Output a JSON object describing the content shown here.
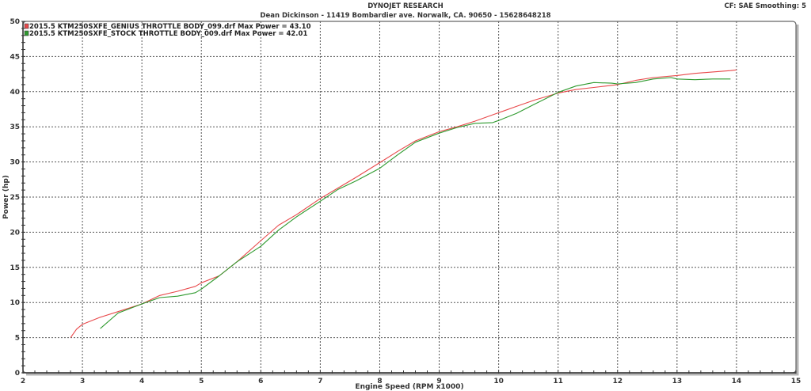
{
  "header": {
    "title": "DYNOJET RESEARCH",
    "subtitle": "Dean Dickinson - 11419 Bombardier ave. Norwalk, CA. 90650 - 15628648218",
    "settings": "CF: SAE  Smoothing: 5"
  },
  "colors": {
    "genius": "#e8484a",
    "stock": "#2e9a2e",
    "grid": "#555555",
    "frame": "#666666",
    "frame_shadow": "#b5b5b5"
  },
  "chart_data": {
    "type": "line",
    "title": "DYNOJET RESEARCH",
    "subtitle": "Dean Dickinson - 11419 Bombardier ave. Norwalk, CA. 90650 - 15628648218",
    "xlabel": "Engine Speed (RPM x1000)",
    "ylabel": "Power (hp)",
    "xlim": [
      2,
      15
    ],
    "ylim": [
      0,
      50
    ],
    "xticks": [
      2,
      3,
      4,
      5,
      6,
      7,
      8,
      9,
      10,
      11,
      12,
      13,
      14,
      15
    ],
    "yticks": [
      0,
      5,
      10,
      15,
      20,
      25,
      30,
      35,
      40,
      45,
      50
    ],
    "grid": true,
    "legend_position": "top-left-inside",
    "series": [
      {
        "name": "2015.5 KTM250SXFE_GENIUS THROTTLE BODY_099.drf Max Power = 43.10",
        "color": "#e8484a",
        "max_power": 43.1,
        "x": [
          2.8,
          2.9,
          3.0,
          3.3,
          3.6,
          4.0,
          4.3,
          4.6,
          4.9,
          5.0,
          5.3,
          5.6,
          6.0,
          6.3,
          6.6,
          7.0,
          7.3,
          7.6,
          8.0,
          8.3,
          8.6,
          9.0,
          9.3,
          9.6,
          10.0,
          10.3,
          10.6,
          11.0,
          11.3,
          11.6,
          12.0,
          12.3,
          12.6,
          13.0,
          13.3,
          13.6,
          13.9,
          14.0
        ],
        "y": [
          5.0,
          6.2,
          6.9,
          7.9,
          8.7,
          9.8,
          11.0,
          11.6,
          12.3,
          12.8,
          13.8,
          15.8,
          18.8,
          21.0,
          22.5,
          24.8,
          26.3,
          27.8,
          29.9,
          31.5,
          33.0,
          34.3,
          35.0,
          35.8,
          37.0,
          37.9,
          38.8,
          39.8,
          40.3,
          40.6,
          41.0,
          41.6,
          42.0,
          42.3,
          42.6,
          42.8,
          43.0,
          43.1
        ]
      },
      {
        "name": "2015.5 KTM250SXFE_STOCK THROTTLE BODY_009.drf Max Power = 42.01",
        "color": "#2e9a2e",
        "max_power": 42.01,
        "x": [
          3.3,
          3.6,
          4.0,
          4.3,
          4.6,
          4.9,
          5.0,
          5.3,
          5.6,
          6.0,
          6.3,
          6.6,
          7.0,
          7.3,
          7.6,
          8.0,
          8.3,
          8.6,
          9.0,
          9.3,
          9.6,
          9.9,
          10.0,
          10.3,
          10.6,
          11.0,
          11.3,
          11.6,
          11.9,
          12.0,
          12.3,
          12.6,
          12.9,
          13.0,
          13.3,
          13.6,
          13.9
        ],
        "y": [
          6.3,
          8.5,
          9.8,
          10.7,
          10.9,
          11.4,
          11.9,
          13.8,
          15.8,
          18.0,
          20.3,
          22.2,
          24.4,
          26.1,
          27.3,
          29.1,
          31.0,
          32.8,
          34.1,
          34.9,
          35.5,
          35.6,
          35.9,
          36.9,
          38.2,
          39.9,
          40.8,
          41.3,
          41.2,
          41.1,
          41.3,
          41.8,
          42.0,
          41.8,
          41.7,
          41.8,
          41.8
        ]
      }
    ]
  }
}
